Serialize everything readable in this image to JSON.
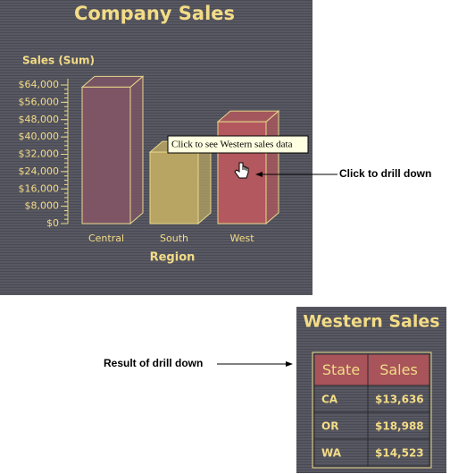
{
  "chart_data": {
    "type": "bar3d",
    "title": "Company Sales",
    "y_label": "Sales (Sum)",
    "x_label": "Region",
    "categories": [
      "Central",
      "South",
      "West"
    ],
    "values": [
      63000,
      33000,
      47000
    ],
    "colors": [
      "#7d5565",
      "#b8a463",
      "#b2585e"
    ],
    "ylim": [
      0,
      64000
    ],
    "yticks": [
      {
        "value": 0,
        "label": "$0"
      },
      {
        "value": 8000,
        "label": "$8,000"
      },
      {
        "value": 16000,
        "label": "$16,000"
      },
      {
        "value": 24000,
        "label": "$24,000"
      },
      {
        "value": 32000,
        "label": "$32,000"
      },
      {
        "value": 40000,
        "label": "$40,000"
      },
      {
        "value": 48000,
        "label": "$48,000"
      },
      {
        "value": 56000,
        "label": "$56,000"
      },
      {
        "value": 64000,
        "label": "$64,000"
      }
    ]
  },
  "tooltip": "Click to see Western sales data",
  "annotations": [
    "Click to drill down",
    "Result of drill down"
  ],
  "table": {
    "title": "Western Sales",
    "header": [
      "State",
      "Sales"
    ],
    "rows": [
      [
        "CA",
        "$13,636"
      ],
      [
        "OR",
        "$18,988"
      ],
      [
        "WA",
        "$14,523"
      ]
    ]
  }
}
